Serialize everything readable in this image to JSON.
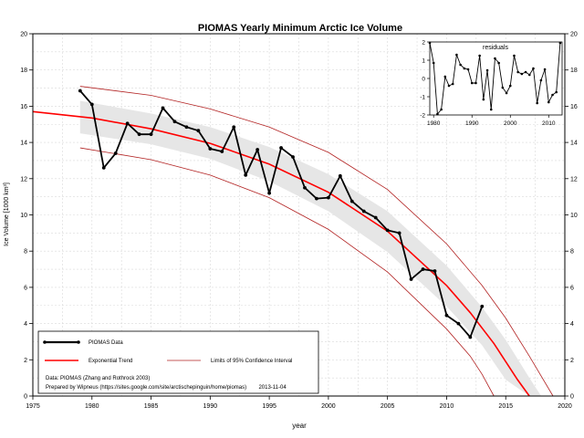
{
  "chart_data": {
    "type": "line",
    "title": "PIOMAS Yearly Minimum Arctic Ice Volume",
    "xlabel": "year",
    "ylabel": "Ice Volume [1000 km³]",
    "xlim": [
      1975,
      2020
    ],
    "ylim": [
      0,
      20
    ],
    "grid": true,
    "x_ticks": [
      1975,
      1980,
      1985,
      1990,
      1995,
      2000,
      2005,
      2010,
      2015,
      2020
    ],
    "y_ticks": [
      0,
      2,
      4,
      6,
      8,
      10,
      12,
      14,
      16,
      18,
      20
    ],
    "series": [
      {
        "name": "PIOMAS Data",
        "color": "#000000",
        "x": [
          1979,
          1980,
          1981,
          1982,
          1983,
          1984,
          1985,
          1986,
          1987,
          1988,
          1989,
          1990,
          1991,
          1992,
          1993,
          1994,
          1995,
          1996,
          1997,
          1998,
          1999,
          2000,
          2001,
          2002,
          2003,
          2004,
          2005,
          2006,
          2007,
          2008,
          2009,
          2010,
          2011,
          2012,
          2013
        ],
        "values": [
          16.85,
          16.1,
          12.6,
          13.4,
          15.05,
          14.45,
          14.45,
          15.9,
          15.15,
          14.85,
          14.65,
          13.65,
          13.5,
          14.85,
          12.2,
          13.6,
          11.2,
          13.7,
          13.2,
          11.5,
          10.9,
          10.95,
          12.15,
          10.75,
          10.2,
          9.85,
          9.15,
          9.0,
          6.45,
          7.0,
          6.9,
          4.45,
          4.0,
          3.25,
          4.95
        ]
      }
    ],
    "trend": {
      "name": "Exponential Trend",
      "color": "#ff0000",
      "x": [
        1975,
        1980,
        1985,
        1990,
        1995,
        2000,
        2005,
        2010,
        2012,
        2014,
        2015,
        2016,
        2017
      ],
      "values": [
        15.7,
        15.35,
        14.75,
        13.95,
        12.8,
        11.25,
        9.1,
        6.1,
        4.6,
        2.9,
        1.9,
        0.9,
        0
      ]
    },
    "confidence_limits": {
      "name": "Limits of 95% Confidence Interval",
      "color": "#b22222",
      "upper": {
        "x": [
          1979,
          1985,
          1990,
          1995,
          2000,
          2005,
          2010,
          2013,
          2015,
          2017,
          2019
        ],
        "values": [
          17.1,
          16.6,
          15.85,
          14.85,
          13.45,
          11.4,
          8.4,
          6.1,
          4.3,
          2.2,
          0
        ]
      },
      "lower": {
        "x": [
          1979,
          1985,
          1990,
          1995,
          2000,
          2005,
          2010,
          2012,
          2013,
          2014
        ],
        "values": [
          13.7,
          13.05,
          12.2,
          10.95,
          9.2,
          6.85,
          3.7,
          2.2,
          1.2,
          0
        ]
      }
    },
    "confidence_band": {
      "x": [
        1979,
        1985,
        1990,
        1995,
        2000,
        2005,
        2010,
        2013,
        2015,
        2017,
        2018
      ],
      "upper": [
        16.3,
        15.6,
        14.85,
        13.75,
        12.25,
        10.2,
        7.2,
        4.9,
        3.1,
        1.0,
        0
      ],
      "lower": [
        14.5,
        13.9,
        13.1,
        11.85,
        10.2,
        7.95,
        4.95,
        2.8,
        0.9,
        0,
        0
      ]
    },
    "legend_position": "bottom-left",
    "legend_entries": [
      "PIOMAS Data",
      "Exponential Trend",
      "Limits of 95% Confidence Interval"
    ],
    "annotation_lines": [
      "Data: PIOMAS (Zhang and Rothrock 2003)",
      "Prepared by Wipneus (https://sites.google.com/site/arctischepinguin/home/piomas)        2013-11-04"
    ],
    "inset": {
      "type": "line",
      "title": "residuals",
      "position": "top-right",
      "xlim": [
        1979,
        2013.5
      ],
      "ylim": [
        -2,
        2
      ],
      "x_ticks": [
        1980,
        1990,
        2000,
        2010
      ],
      "y_ticks": [
        -2,
        -1,
        0,
        1,
        2
      ],
      "x": [
        1979,
        1980,
        1981,
        1982,
        1983,
        1984,
        1985,
        1986,
        1987,
        1988,
        1989,
        1990,
        1991,
        1992,
        1993,
        1994,
        1995,
        1996,
        1997,
        1998,
        1999,
        2000,
        2001,
        2002,
        2003,
        2004,
        2005,
        2006,
        2007,
        2008,
        2009,
        2010,
        2011,
        2012,
        2013
      ],
      "values": [
        1.95,
        0.85,
        -1.95,
        -1.7,
        0.1,
        -0.4,
        -0.3,
        1.3,
        0.75,
        0.55,
        0.5,
        -0.25,
        -0.25,
        1.25,
        -1.15,
        0.45,
        -1.7,
        1.1,
        0.85,
        -0.5,
        -0.8,
        -0.4,
        1.25,
        0.35,
        0.25,
        0.35,
        0.2,
        0.55,
        -1.35,
        -0.1,
        0.5,
        -1.3,
        -0.9,
        -0.75,
        1.95
      ]
    }
  }
}
